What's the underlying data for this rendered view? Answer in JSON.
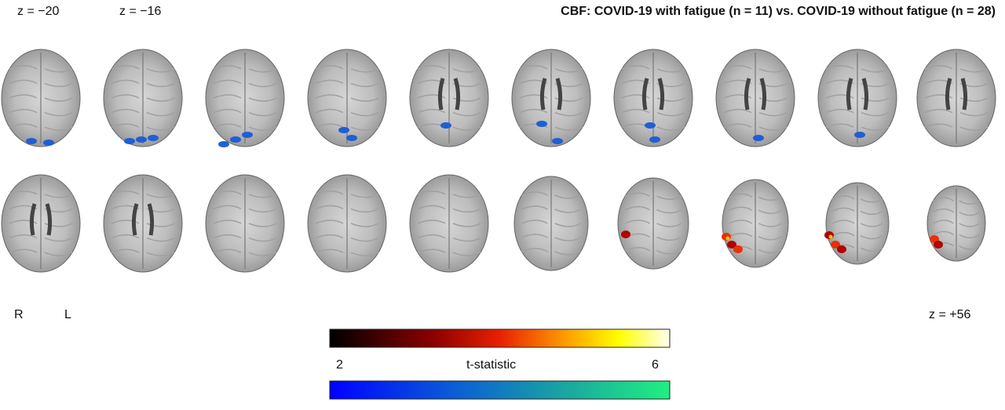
{
  "title": "CBF: COVID-19 with fatigue (n = 11) vs. COVID-19 without fatigue (n = 28)",
  "slice_labels": {
    "first": "z = −20",
    "second": "z = −16",
    "last": "z = +56"
  },
  "orientation": {
    "right": "R",
    "left": "L"
  },
  "colorbar": {
    "min_label": "2",
    "max_label": "6",
    "label": "t-statistic"
  }
}
